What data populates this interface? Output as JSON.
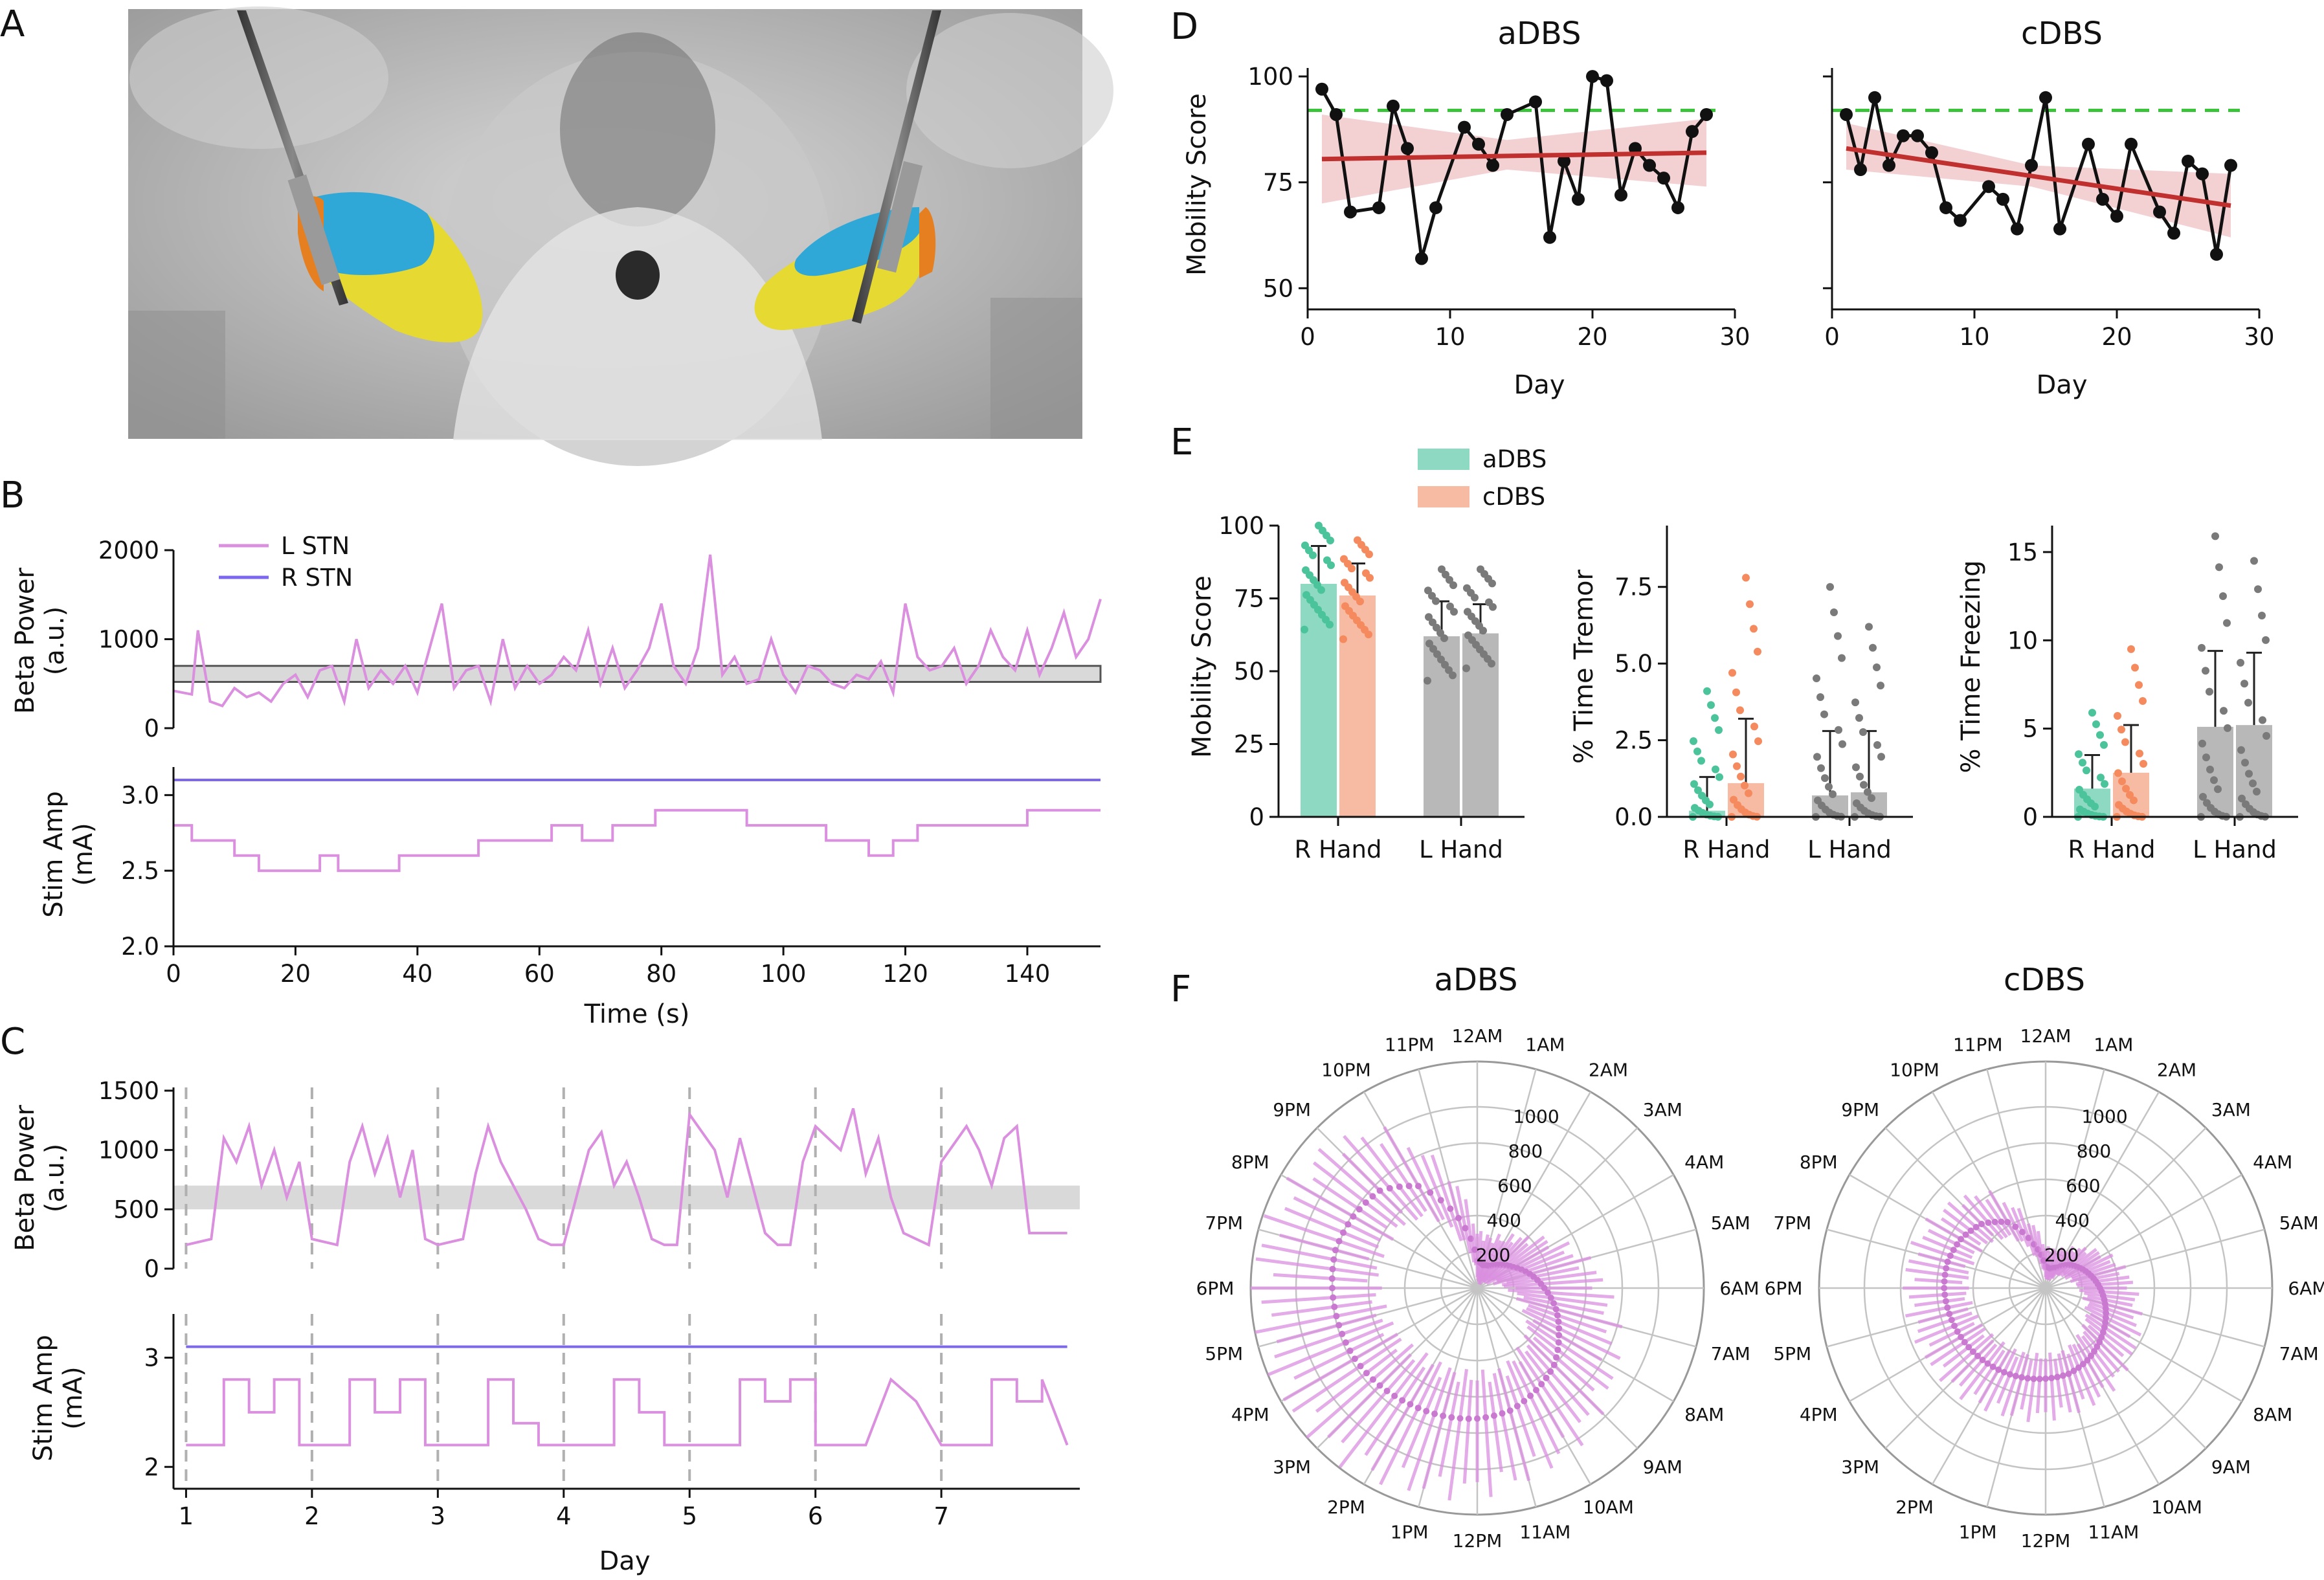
{
  "panels": {
    "A": "A",
    "B": "B",
    "C": "C",
    "D": "D",
    "E": "E",
    "F": "F"
  },
  "colors": {
    "lstn": "#da8fdf",
    "rstn": "#7b68ee",
    "adbs": "#8ed9c1",
    "adbs_pt": "#4bc39b",
    "cdbs": "#f7bba3",
    "cdbs_pt": "#f58a5f",
    "gray_bar": "#b8b8b8",
    "gray_pt": "#7a7a7a",
    "trend": "#c0302e",
    "trend_band": "#f0c6c8",
    "ref_green": "#3ac43a",
    "band_gray": "#d9d9d9",
    "stn_blue": "#2fa8d8",
    "stn_yellow": "#e6d931",
    "stn_orange": "#e57f1f"
  },
  "panel_B": {
    "beta": {
      "ylabel": [
        "Beta Power",
        "(a.u.)"
      ],
      "yticks": [
        "0",
        "1000",
        "2000"
      ],
      "ylim": [
        0,
        2000
      ],
      "band": [
        520,
        700
      ],
      "legend": [
        {
          "name": "L STN",
          "color": "#da8fdf"
        },
        {
          "name": "R STN",
          "color": "#7b68ee"
        }
      ],
      "series": [
        {
          "name": "L STN",
          "x": [
            0,
            3,
            4,
            6,
            8,
            10,
            12,
            14,
            16,
            18,
            20,
            22,
            24,
            26,
            28,
            30,
            32,
            34,
            36,
            38,
            40,
            42,
            44,
            46,
            48,
            50,
            52,
            54,
            56,
            58,
            60,
            62,
            64,
            66,
            68,
            70,
            72,
            74,
            76,
            78,
            80,
            82,
            84,
            86,
            88,
            90,
            92,
            94,
            96,
            98,
            100,
            102,
            104,
            106,
            108,
            110,
            112,
            114,
            116,
            118,
            120,
            122,
            124,
            126,
            128,
            130,
            132,
            134,
            136,
            138,
            140,
            142,
            144,
            146,
            148,
            150,
            152
          ],
          "y": [
            420,
            380,
            1100,
            300,
            250,
            450,
            350,
            400,
            300,
            500,
            600,
            350,
            650,
            700,
            300,
            1000,
            450,
            650,
            500,
            700,
            400,
            900,
            1400,
            450,
            650,
            700,
            300,
            1000,
            450,
            700,
            500,
            600,
            800,
            650,
            1100,
            500,
            900,
            450,
            650,
            900,
            1400,
            700,
            500,
            900,
            1950,
            600,
            800,
            500,
            550,
            1000,
            600,
            400,
            700,
            650,
            500,
            450,
            600,
            550,
            750,
            400,
            1400,
            800,
            650,
            700,
            900,
            500,
            700,
            1100,
            800,
            650,
            1100,
            600,
            900,
            1300,
            800,
            1000,
            1450
          ]
        },
        {
          "name": "R STN",
          "x": [
            0,
            152
          ],
          "y": [
            0,
            0
          ]
        }
      ]
    },
    "stim": {
      "ylabel": [
        "Stim Amp",
        "(mA)"
      ],
      "yticks": [
        "2.0",
        "2.5",
        "3.0"
      ],
      "ylim": [
        2.0,
        3.1
      ],
      "xticks": [
        "0",
        "20",
        "40",
        "60",
        "80",
        "100",
        "120",
        "140"
      ],
      "xlim": [
        0,
        152
      ],
      "xlabel": "Time (s)",
      "series": [
        {
          "name": "L STN",
          "x": [
            0,
            3,
            3,
            10,
            10,
            14,
            14,
            24,
            24,
            27,
            27,
            37,
            37,
            50,
            50,
            60,
            60,
            62,
            62,
            67,
            67,
            72,
            72,
            74,
            74,
            79,
            79,
            94,
            94,
            107,
            107,
            114,
            114,
            118,
            118,
            122,
            122,
            140,
            140,
            152
          ],
          "y": [
            2.8,
            2.8,
            2.7,
            2.7,
            2.6,
            2.6,
            2.5,
            2.5,
            2.6,
            2.6,
            2.5,
            2.5,
            2.6,
            2.6,
            2.7,
            2.7,
            2.7,
            2.7,
            2.8,
            2.8,
            2.7,
            2.7,
            2.8,
            2.8,
            2.8,
            2.8,
            2.9,
            2.9,
            2.8,
            2.8,
            2.7,
            2.7,
            2.6,
            2.6,
            2.7,
            2.7,
            2.8,
            2.8,
            2.9,
            2.9
          ]
        },
        {
          "name": "R STN",
          "x": [
            0,
            152
          ],
          "y": [
            3.1,
            3.1
          ]
        }
      ]
    }
  },
  "panel_C": {
    "beta": {
      "ylabel": [
        "Beta Power",
        "(a.u.)"
      ],
      "yticks": [
        "0",
        "500",
        "1000",
        "1500"
      ],
      "ylim": [
        0,
        1500
      ],
      "band": [
        500,
        700
      ],
      "series": [
        {
          "name": "L STN",
          "x": [
            1,
            1.2,
            1.3,
            1.4,
            1.5,
            1.6,
            1.7,
            1.8,
            1.9,
            2,
            2.2,
            2.3,
            2.4,
            2.5,
            2.6,
            2.7,
            2.8,
            2.9,
            3,
            3.2,
            3.3,
            3.4,
            3.5,
            3.6,
            3.7,
            3.8,
            3.9,
            4,
            4.2,
            4.3,
            4.4,
            4.5,
            4.6,
            4.7,
            4.8,
            4.9,
            5,
            5.2,
            5.3,
            5.4,
            5.5,
            5.6,
            5.7,
            5.8,
            5.9,
            6,
            6.2,
            6.3,
            6.4,
            6.5,
            6.6,
            6.7,
            6.8,
            6.9,
            7,
            7.2,
            7.3,
            7.4,
            7.5,
            7.6,
            7.7,
            7.8,
            7.9,
            8
          ],
          "y": [
            200,
            250,
            1100,
            900,
            1200,
            700,
            1000,
            600,
            900,
            250,
            200,
            900,
            1200,
            800,
            1100,
            600,
            1000,
            250,
            200,
            250,
            800,
            1200,
            900,
            700,
            500,
            250,
            200,
            200,
            1000,
            1150,
            700,
            900,
            600,
            250,
            200,
            200,
            1300,
            1000,
            600,
            1100,
            700,
            300,
            200,
            200,
            900,
            1200,
            1000,
            1350,
            800,
            1100,
            600,
            300,
            250,
            200,
            900,
            1200,
            1000,
            700,
            1100,
            1200,
            300,
            300,
            300,
            300
          ]
        }
      ]
    },
    "stim": {
      "ylabel": [
        "Stim Amp",
        "(mA)"
      ],
      "yticks": [
        "2",
        "3"
      ],
      "ylim": [
        1.8,
        3.4
      ],
      "xticks": [
        "1",
        "2",
        "3",
        "4",
        "5",
        "6",
        "7"
      ],
      "xlim": [
        0.9,
        8.1
      ],
      "xlabel": "Day",
      "series": [
        {
          "name": "L STN",
          "x": [
            1,
            1.3,
            1.3,
            1.5,
            1.5,
            1.7,
            1.7,
            1.9,
            1.9,
            2,
            2,
            2.3,
            2.3,
            2.5,
            2.5,
            2.7,
            2.7,
            2.9,
            2.9,
            3,
            3,
            3.4,
            3.4,
            3.6,
            3.6,
            3.8,
            3.8,
            4,
            4,
            4.4,
            4.4,
            4.6,
            4.6,
            4.8,
            4.8,
            5,
            5,
            5.4,
            5.4,
            5.6,
            5.6,
            5.8,
            5.8,
            6,
            6,
            6.4,
            6.4,
            6.6,
            6.6,
            6.8,
            6.8,
            7,
            7,
            7.4,
            7.4,
            7.6,
            7.6,
            7.8,
            7.8,
            8
          ],
          "y": [
            2.2,
            2.2,
            2.8,
            2.8,
            2.5,
            2.5,
            2.8,
            2.8,
            2.2,
            2.2,
            2.2,
            2.2,
            2.8,
            2.8,
            2.5,
            2.5,
            2.8,
            2.8,
            2.2,
            2.2,
            2.2,
            2.2,
            2.8,
            2.8,
            2.4,
            2.4,
            2.2,
            2.2,
            2.2,
            2.2,
            2.8,
            2.8,
            2.5,
            2.5,
            2.2,
            2.2,
            2.2,
            2.2,
            2.8,
            2.8,
            2.6,
            2.6,
            2.8,
            2.8,
            2.2,
            2.2,
            2.2,
            2.8,
            2.8,
            2.6,
            2.6,
            2.2,
            2.2,
            2.2,
            2.8,
            2.8,
            2.6,
            2.6,
            2.8,
            2.2
          ]
        },
        {
          "name": "R STN",
          "x": [
            1,
            8
          ],
          "y": [
            3.1,
            3.1
          ]
        }
      ],
      "day_lines": [
        1,
        2,
        3,
        4,
        5,
        6,
        7
      ]
    }
  },
  "panel_D": {
    "ylabel": "Mobility Score",
    "xlabel": "Day",
    "yticks": [
      "50",
      "75",
      "100"
    ],
    "xticks": [
      "0",
      "10",
      "20",
      "30"
    ],
    "ylim": [
      45,
      102
    ],
    "xlim": [
      0,
      30
    ],
    "reference_line": 92,
    "subplots": [
      {
        "title": "aDBS",
        "x": [
          1,
          2,
          3,
          5,
          6,
          7,
          8,
          9,
          11,
          12,
          13,
          14,
          16,
          17,
          18,
          19,
          20,
          21,
          22,
          23,
          24,
          25,
          26,
          27,
          28
        ],
        "y": [
          97,
          91,
          68,
          69,
          93,
          83,
          57,
          69,
          88,
          84,
          79,
          91,
          94,
          62,
          80,
          71,
          100,
          99,
          72,
          83,
          79,
          76,
          69,
          87,
          91
        ],
        "trend": [
          [
            1,
            80.5
          ],
          [
            28,
            82
          ]
        ],
        "band_low": [
          [
            1,
            70
          ],
          [
            14,
            78
          ],
          [
            28,
            74
          ]
        ],
        "band_high": [
          [
            1,
            91
          ],
          [
            14,
            85
          ],
          [
            28,
            90
          ]
        ]
      },
      {
        "title": "cDBS",
        "x": [
          1,
          2,
          3,
          4,
          5,
          6,
          7,
          8,
          9,
          11,
          12,
          13,
          14,
          15,
          16,
          18,
          19,
          20,
          21,
          23,
          24,
          25,
          26,
          27,
          28
        ],
        "y": [
          91,
          78,
          95,
          79,
          86,
          86,
          82,
          69,
          66,
          74,
          71,
          64,
          79,
          95,
          64,
          84,
          71,
          67,
          84,
          68,
          63,
          80,
          77,
          58,
          79
        ],
        "trend": [
          [
            1,
            83
          ],
          [
            28,
            69.5
          ]
        ],
        "band_low": [
          [
            1,
            78
          ],
          [
            14,
            74
          ],
          [
            28,
            62
          ]
        ],
        "band_high": [
          [
            1,
            89
          ],
          [
            14,
            79
          ],
          [
            28,
            77
          ]
        ]
      }
    ]
  },
  "panel_E": {
    "legend": [
      {
        "name": "aDBS"
      },
      {
        "name": "cDBS"
      }
    ],
    "groups": [
      "R Hand",
      "L Hand"
    ],
    "subplots": [
      {
        "ylabel": "Mobility Score",
        "yticks": [
          "0",
          "25",
          "50",
          "75",
          "100"
        ],
        "ylim": [
          0,
          100
        ],
        "bars": [
          {
            "group": "R Hand",
            "cond": "aDBS",
            "value": 80,
            "err": 13
          },
          {
            "group": "R Hand",
            "cond": "cDBS",
            "value": 76,
            "err": 11
          },
          {
            "group": "L Hand",
            "cond": "aDBS",
            "value": 62,
            "err": 12
          },
          {
            "group": "L Hand",
            "cond": "cDBS",
            "value": 63,
            "err": 10
          }
        ],
        "point_ranges": [
          [
            58,
            100
          ],
          [
            55,
            95
          ],
          [
            40,
            85
          ],
          [
            45,
            85
          ]
        ]
      },
      {
        "ylabel": "% Time Tremor",
        "yticks": [
          "0.0",
          "2.5",
          "5.0",
          "7.5"
        ],
        "ylim": [
          0,
          9.5
        ],
        "bars": [
          {
            "group": "R Hand",
            "cond": "aDBS",
            "value": 0.2,
            "err": 1.1
          },
          {
            "group": "R Hand",
            "cond": "cDBS",
            "value": 1.1,
            "err": 2.1
          },
          {
            "group": "L Hand",
            "cond": "aDBS",
            "value": 0.7,
            "err": 2.1
          },
          {
            "group": "L Hand",
            "cond": "cDBS",
            "value": 0.8,
            "err": 2.0
          }
        ],
        "point_ranges": [
          [
            0,
            4.1
          ],
          [
            0,
            7.8
          ],
          [
            0,
            7.5
          ],
          [
            0,
            6.2
          ]
        ]
      },
      {
        "ylabel": "% Time Freezing",
        "yticks": [
          "0",
          "5",
          "10",
          "15"
        ],
        "ylim": [
          0,
          16.5
        ],
        "bars": [
          {
            "group": "R Hand",
            "cond": "aDBS",
            "value": 1.6,
            "err": 1.9
          },
          {
            "group": "R Hand",
            "cond": "cDBS",
            "value": 2.5,
            "err": 2.7
          },
          {
            "group": "L Hand",
            "cond": "aDBS",
            "value": 5.1,
            "err": 4.3
          },
          {
            "group": "L Hand",
            "cond": "cDBS",
            "value": 5.2,
            "err": 4.1
          }
        ],
        "point_ranges": [
          [
            0,
            5.9
          ],
          [
            0,
            9.5
          ],
          [
            0,
            15.9
          ],
          [
            0,
            14.5
          ]
        ]
      }
    ]
  },
  "panel_F": {
    "hour_labels": [
      "12AM",
      "1AM",
      "2AM",
      "3AM",
      "4AM",
      "5AM",
      "6AM",
      "7AM",
      "8AM",
      "9AM",
      "10AM",
      "11AM",
      "12PM",
      "1PM",
      "2PM",
      "3PM",
      "4PM",
      "5PM",
      "6PM",
      "7PM",
      "8PM",
      "9PM",
      "10PM",
      "11PM"
    ],
    "radial_ticks": [
      "200",
      "400",
      "600",
      "800",
      "1000"
    ],
    "rmax": 1250,
    "subplots": [
      {
        "title": "aDBS",
        "mean": [
          150,
          130,
          140,
          180,
          230,
          300,
          370,
          450,
          520,
          600,
          650,
          700,
          720,
          730,
          740,
          760,
          780,
          790,
          800,
          810,
          790,
          760,
          650,
          400
        ],
        "spread": [
          150,
          150,
          170,
          200,
          260,
          300,
          320,
          320,
          330,
          330,
          350,
          360,
          380,
          400,
          420,
          420,
          420,
          400,
          400,
          380,
          360,
          350,
          320,
          250
        ]
      },
      {
        "title": "cDBS",
        "mean": [
          120,
          110,
          130,
          180,
          220,
          260,
          300,
          340,
          380,
          420,
          460,
          490,
          500,
          510,
          520,
          530,
          540,
          550,
          560,
          560,
          540,
          500,
          420,
          250
        ],
        "spread": [
          100,
          100,
          110,
          120,
          150,
          170,
          180,
          180,
          190,
          190,
          200,
          200,
          200,
          210,
          210,
          210,
          210,
          200,
          200,
          200,
          190,
          180,
          170,
          140
        ]
      }
    ]
  }
}
